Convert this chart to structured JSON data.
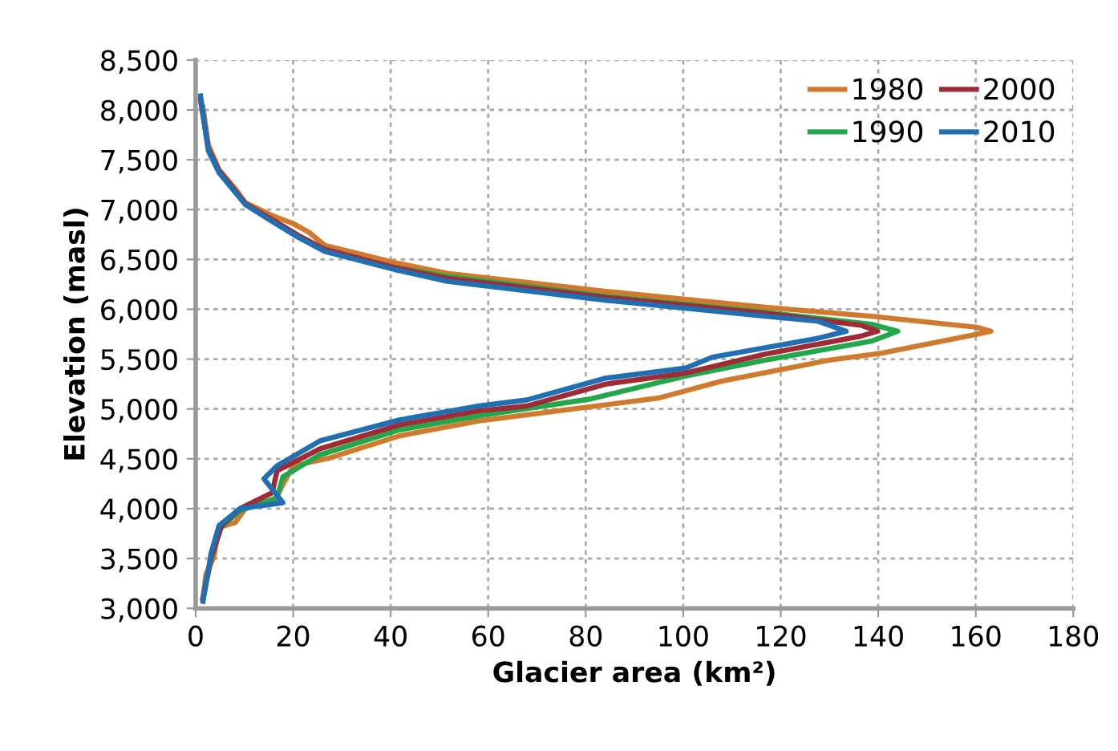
{
  "chart_data": {
    "type": "line",
    "xlabel": "Glacier area (km²)",
    "ylabel": "Elevation (masl)",
    "xlim": [
      0,
      180
    ],
    "xticks": [
      0,
      20,
      40,
      60,
      80,
      100,
      120,
      140,
      160,
      180
    ],
    "ylim": [
      3000,
      8500
    ],
    "yticks": [
      {
        "value": 3000,
        "label": "3,000"
      },
      {
        "value": 3500,
        "label": "3,500"
      },
      {
        "value": 4000,
        "label": "4,000"
      },
      {
        "value": 4500,
        "label": "4,500"
      },
      {
        "value": 5000,
        "label": "5,000"
      },
      {
        "value": 5500,
        "label": "5,500"
      },
      {
        "value": 6000,
        "label": "6,000"
      },
      {
        "value": 6500,
        "label": "6,500"
      },
      {
        "value": 7000,
        "label": "7,000"
      },
      {
        "value": 7500,
        "label": "7,500"
      },
      {
        "value": 8000,
        "label": "8,000"
      },
      {
        "value": 8500,
        "label": "8,500"
      }
    ],
    "grid": true,
    "legend": "top right",
    "line_style": "solid",
    "marker": "none",
    "series": [
      {
        "name": "1980",
        "color": "#d07a2e",
        "x": [
          1.5,
          2.1,
          3.7,
          4.8,
          8.1,
          10.2,
          16.2,
          17.9,
          20.0,
          27.6,
          41.8,
          58.1,
          95.0,
          108.0,
          129.9,
          140.7,
          160.2,
          163.1,
          160.2,
          138.6,
          116.8,
          84.2,
          51.6,
          40.7,
          26.5,
          23.3,
          20.0,
          15.7,
          10.2,
          8.1,
          4.8,
          2.6,
          1.5
        ],
        "values": [
          3100,
          3340,
          3510,
          3810,
          3860,
          4000,
          4080,
          4240,
          4430,
          4510,
          4730,
          4880,
          5110,
          5280,
          5490,
          5560,
          5750,
          5780,
          5820,
          5930,
          6020,
          6180,
          6360,
          6470,
          6640,
          6770,
          6860,
          6940,
          7070,
          7210,
          7400,
          7650,
          8030
        ]
      },
      {
        "name": "1990",
        "color": "#22a84a",
        "x": [
          1.5,
          3.2,
          5.3,
          9.1,
          16.7,
          17.9,
          25.5,
          41.8,
          58.1,
          80.9,
          100.5,
          116.8,
          138.6,
          144.0,
          138.6,
          116.8,
          84.2,
          51.6,
          40.7,
          26.5
        ],
        "values": [
          3100,
          3510,
          3820,
          3980,
          4110,
          4320,
          4540,
          4790,
          4930,
          5100,
          5330,
          5490,
          5680,
          5780,
          5850,
          5970,
          6130,
          6330,
          6420,
          6600
        ]
      },
      {
        "name": "2000",
        "color": "#9e2b35",
        "x": [
          1.5,
          3.2,
          5.3,
          9.1,
          15.7,
          16.7,
          25.5,
          41.8,
          58.1,
          67.9,
          84.2,
          100.5,
          116.8,
          136.4,
          139.9,
          136.4,
          116.8,
          84.2,
          51.6,
          40.7,
          26.5,
          21.1,
          15.7,
          10.2,
          4.8,
          2.6,
          1.0
        ],
        "values": [
          3100,
          3510,
          3830,
          4000,
          4160,
          4380,
          4600,
          4840,
          4980,
          5030,
          5250,
          5360,
          5550,
          5730,
          5780,
          5840,
          5960,
          6120,
          6310,
          6420,
          6600,
          6740,
          6900,
          7060,
          7390,
          7610,
          8100
        ]
      },
      {
        "name": "2010",
        "color": "#1f6fb2",
        "x": [
          1.5,
          3.2,
          4.8,
          9.1,
          17.9,
          14.0,
          16.7,
          25.5,
          41.8,
          58.1,
          67.9,
          84.2,
          100.5,
          106.0,
          127.7,
          133.4,
          127.7,
          116.8,
          84.2,
          51.6,
          40.7,
          26.5,
          21.1,
          15.7,
          10.2,
          4.8,
          2.6,
          1.0
        ],
        "values": [
          3070,
          3560,
          3830,
          4000,
          4060,
          4300,
          4430,
          4680,
          4890,
          5030,
          5090,
          5310,
          5410,
          5520,
          5710,
          5780,
          5880,
          5930,
          6090,
          6280,
          6400,
          6580,
          6720,
          6880,
          7050,
          7370,
          7590,
          8140
        ]
      }
    ]
  }
}
